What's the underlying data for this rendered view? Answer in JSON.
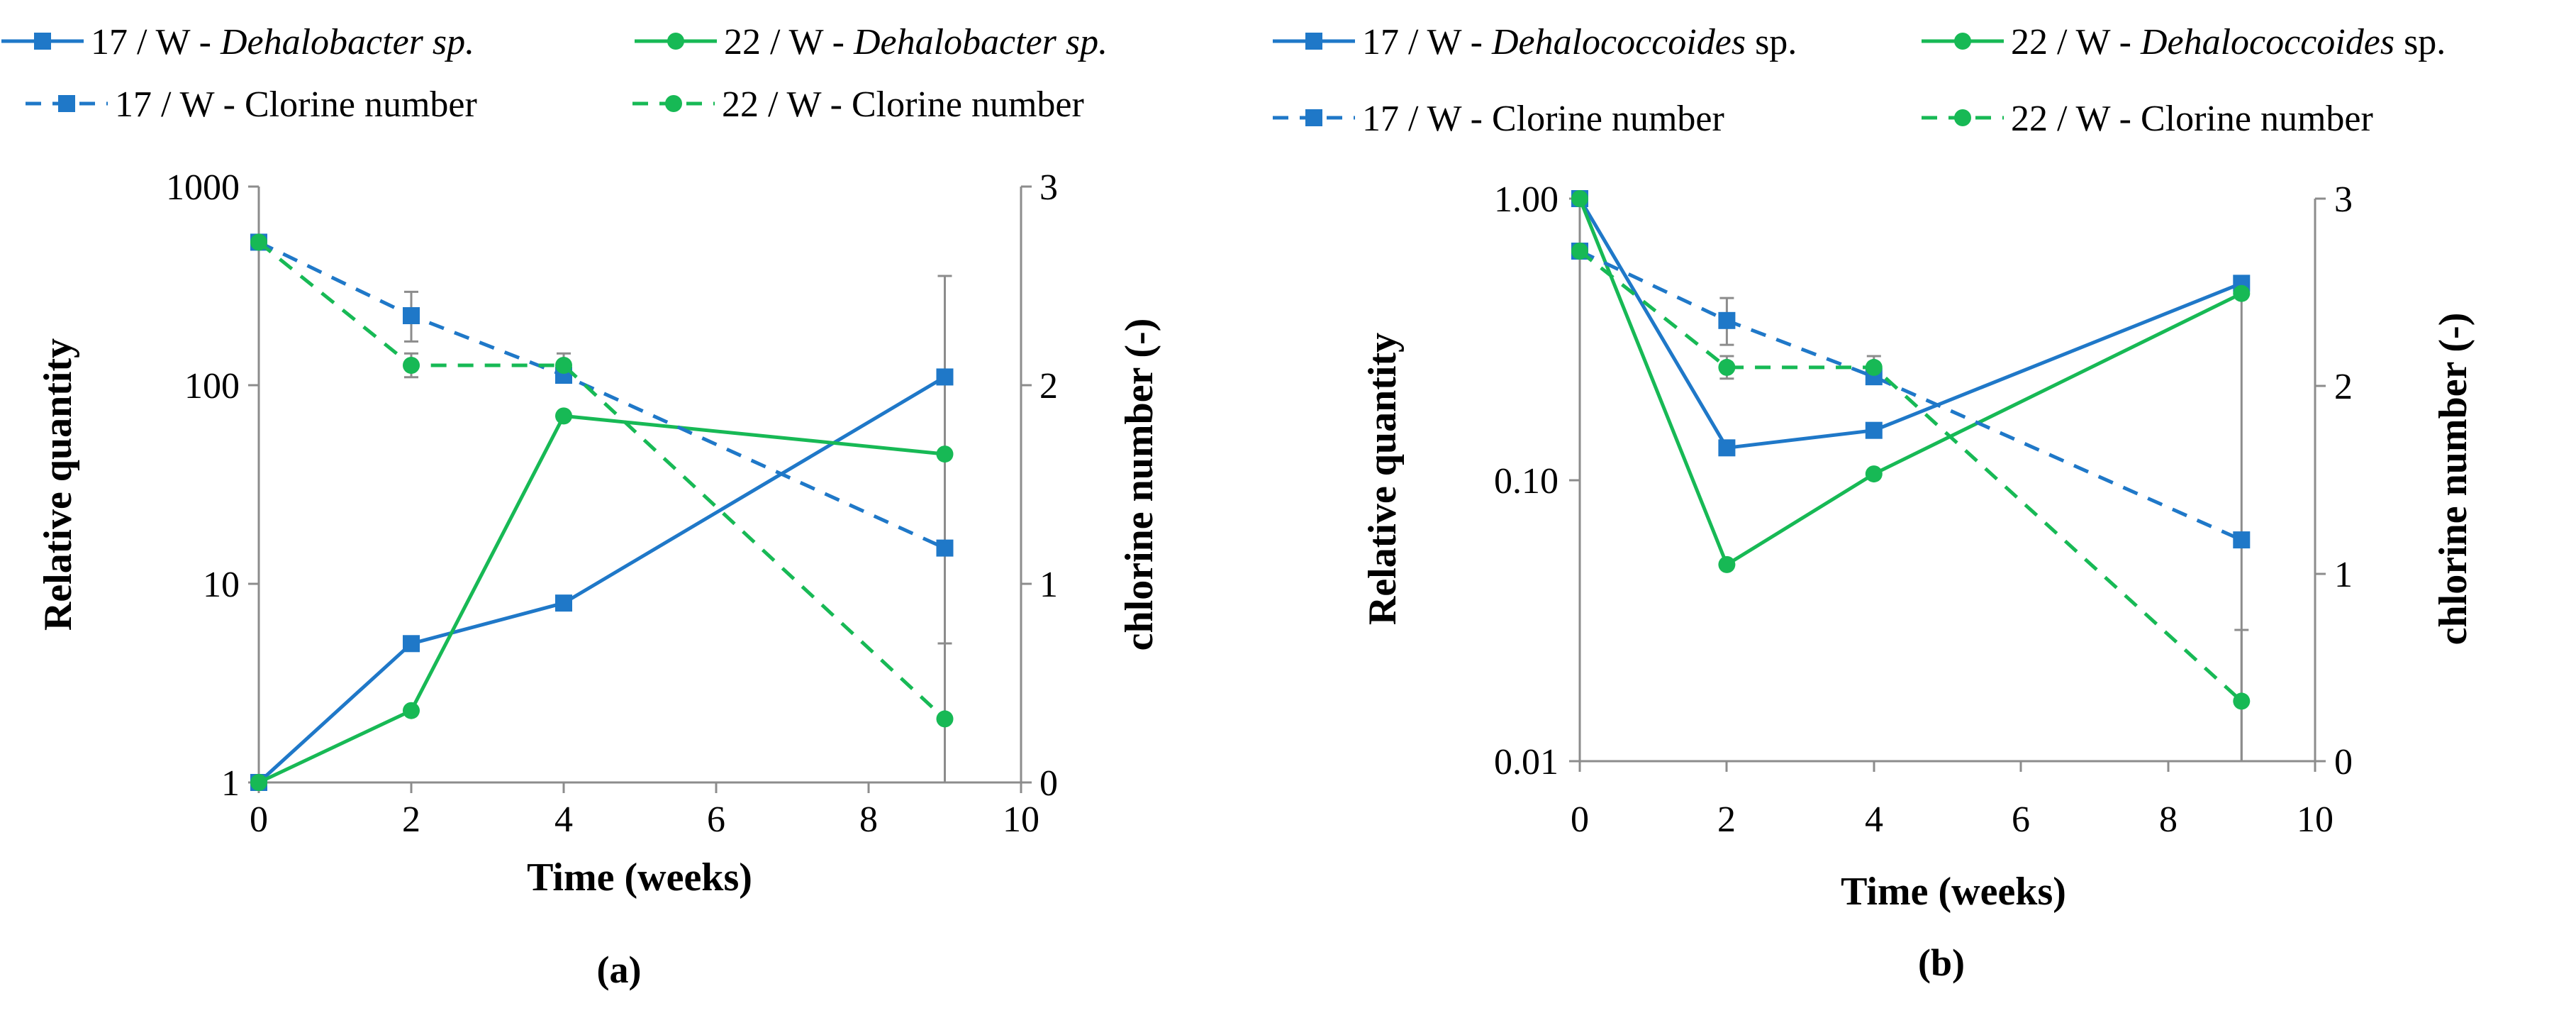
{
  "colors": {
    "blue": "#1f78c8",
    "green": "#17b955",
    "axis": "#8c8c8c",
    "errorbar": "#8c8c8c"
  },
  "chart_data": [
    {
      "type": "line",
      "panel_label": "(a)",
      "xlabel": "Time (weeks)",
      "ylabel": "Relative quantity",
      "y2label": "chlorine number (-)",
      "xlim": [
        0,
        10
      ],
      "ylim": [
        1,
        1000
      ],
      "yscale": "log",
      "y2lim": [
        0,
        3
      ],
      "x_ticks": [
        "0",
        "2",
        "4",
        "6",
        "8",
        "10"
      ],
      "y_ticks": [
        "1",
        "10",
        "100",
        "1000"
      ],
      "y2_ticks": [
        "0",
        "1",
        "2",
        "3"
      ],
      "legend": [
        {
          "series": 0,
          "prefix": "17 / W - ",
          "taxon": "Dehalobacter sp.",
          "suffix": ""
        },
        {
          "series": 1,
          "prefix": "22 / W - ",
          "taxon": "Dehalobacter sp.",
          "suffix": ""
        },
        {
          "series": 2,
          "prefix": "17 / W - Clorine number",
          "taxon": "",
          "suffix": ""
        },
        {
          "series": 3,
          "prefix": "22 / W - Clorine number",
          "taxon": "",
          "suffix": ""
        }
      ],
      "series": [
        {
          "name": "17 / W - Dehalobacter sp.",
          "axis": "left",
          "color": "blue",
          "dashed": false,
          "marker": "square",
          "x": [
            0,
            2,
            4,
            9
          ],
          "values": [
            1,
            5,
            8,
            110
          ]
        },
        {
          "name": "22 / W - Dehalobacter sp.",
          "axis": "left",
          "color": "green",
          "dashed": false,
          "marker": "circle",
          "x": [
            0,
            2,
            4,
            9
          ],
          "values": [
            1,
            2.3,
            70,
            45
          ]
        },
        {
          "name": "17 / W - Clorine number",
          "axis": "right",
          "color": "blue",
          "dashed": true,
          "marker": "square",
          "x": [
            0,
            2,
            4,
            9
          ],
          "values": [
            2.72,
            2.35,
            2.05,
            1.18
          ],
          "err_low": [
            null,
            2.22,
            null,
            0.0
          ],
          "err_high": [
            null,
            2.47,
            null,
            2.55
          ]
        },
        {
          "name": "22 / W - Clorine number",
          "axis": "right",
          "color": "green",
          "dashed": true,
          "marker": "circle",
          "x": [
            0,
            2,
            4,
            9
          ],
          "values": [
            2.72,
            2.1,
            2.1,
            0.32
          ],
          "err_low": [
            null,
            2.04,
            2.04,
            0.0
          ],
          "err_high": [
            null,
            2.16,
            2.16,
            0.7
          ]
        }
      ]
    },
    {
      "type": "line",
      "panel_label": "(b)",
      "xlabel": "Time (weeks)",
      "ylabel": "Relative quantity",
      "y2label": "chlorine number (-)",
      "xlim": [
        0,
        10
      ],
      "ylim": [
        0.01,
        1
      ],
      "yscale": "log",
      "y2lim": [
        0,
        3
      ],
      "x_ticks": [
        "0",
        "2",
        "4",
        "6",
        "8",
        "10"
      ],
      "y_ticks": [
        "0.01",
        "0.10",
        "1.00"
      ],
      "y2_ticks": [
        "0",
        "1",
        "2",
        "3"
      ],
      "legend": [
        {
          "series": 0,
          "prefix": "17 / W - ",
          "taxon": "Dehalococcoides",
          "suffix": " sp."
        },
        {
          "series": 1,
          "prefix": "22 / W - ",
          "taxon": "Dehalococcoides",
          "suffix": " sp."
        },
        {
          "series": 2,
          "prefix": "17 / W - Clorine number",
          "taxon": "",
          "suffix": ""
        },
        {
          "series": 3,
          "prefix": "22 / W - Clorine number",
          "taxon": "",
          "suffix": ""
        }
      ],
      "series": [
        {
          "name": "17 / W - Dehalococcoides sp.",
          "axis": "left",
          "color": "blue",
          "dashed": false,
          "marker": "square",
          "x": [
            0,
            2,
            4,
            9
          ],
          "values": [
            1.0,
            0.13,
            0.15,
            0.5
          ]
        },
        {
          "name": "22 / W - Dehalococcoides sp.",
          "axis": "left",
          "color": "green",
          "dashed": false,
          "marker": "circle",
          "x": [
            0,
            2,
            4,
            9
          ],
          "values": [
            1.0,
            0.05,
            0.105,
            0.46
          ]
        },
        {
          "name": "17 / W - Clorine number",
          "axis": "right",
          "color": "blue",
          "dashed": true,
          "marker": "square",
          "x": [
            0,
            2,
            4,
            9
          ],
          "values": [
            2.72,
            2.35,
            2.05,
            1.18
          ],
          "err_low": [
            null,
            2.22,
            null,
            0.0
          ],
          "err_high": [
            null,
            2.47,
            null,
            2.55
          ]
        },
        {
          "name": "22 / W - Clorine number",
          "axis": "right",
          "color": "green",
          "dashed": true,
          "marker": "circle",
          "x": [
            0,
            2,
            4,
            9
          ],
          "values": [
            2.72,
            2.1,
            2.1,
            0.32
          ],
          "err_low": [
            null,
            2.04,
            2.04,
            0.0
          ],
          "err_high": [
            null,
            2.16,
            2.16,
            0.7
          ]
        }
      ]
    }
  ]
}
